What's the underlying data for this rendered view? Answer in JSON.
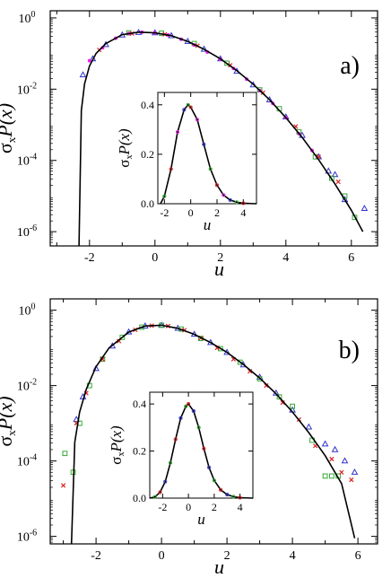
{
  "chart_data": [
    {
      "type": "scatter",
      "panel_label": "a)",
      "xlabel": "u",
      "ylabel_main": "σ",
      "ylabel_sub": "x",
      "ylabel_rest": "P(x)",
      "xlim": [
        -3.2,
        6.8
      ],
      "ylim_log10": [
        -6.4,
        0.2
      ],
      "y_scale": "log",
      "xticks": [
        -2,
        0,
        2,
        4,
        6
      ],
      "xtick_labels": [
        "-2",
        "0",
        "2",
        "4",
        "6"
      ],
      "yticks_log10": [
        0,
        -2,
        -4,
        -6
      ],
      "ytick_base": "10",
      "ytick_exponents": [
        "0",
        "-2",
        "-4",
        "-6"
      ],
      "curve": {
        "name": "",
        "color": "#000000",
        "x": [
          -2.32,
          -2.25,
          -2.15,
          -2.0,
          -1.8,
          -1.5,
          -1.0,
          -0.5,
          0.0,
          0.5,
          1.0,
          1.5,
          2.0,
          2.5,
          3.0,
          3.5,
          4.0,
          4.5,
          5.0,
          5.5,
          6.0,
          6.35
        ],
        "y": [
          -6.4,
          -2.6,
          -1.85,
          -1.35,
          -1.0,
          -0.72,
          -0.47,
          -0.4,
          -0.42,
          -0.5,
          -0.66,
          -0.88,
          -1.15,
          -1.48,
          -1.86,
          -2.3,
          -2.8,
          -3.36,
          -3.98,
          -4.66,
          -5.4,
          -6.0
        ]
      },
      "series": [
        {
          "name": "",
          "marker": "triangle",
          "color": "#3333cc",
          "x": [
            -2.2,
            -1.9,
            -1.5,
            -1.0,
            -0.5,
            0.0,
            0.5,
            1.0,
            1.5,
            2.0,
            2.5,
            3.0,
            3.5,
            4.0,
            4.5,
            5.0,
            5.3,
            5.5,
            5.8,
            6.4
          ],
          "y": [
            -1.6,
            -1.15,
            -0.75,
            -0.48,
            -0.41,
            -0.42,
            -0.5,
            -0.66,
            -0.88,
            -1.15,
            -1.5,
            -1.88,
            -2.3,
            -2.78,
            -3.3,
            -3.9,
            -4.3,
            -4.4,
            -5.1,
            -5.35
          ]
        },
        {
          "name": "",
          "marker": "square",
          "color": "#33aa33",
          "x": [
            -0.8,
            0.2,
            1.2,
            2.2,
            3.2,
            3.8,
            4.4,
            4.9,
            5.4,
            5.8,
            6.1
          ],
          "y": [
            -0.42,
            -0.43,
            -0.72,
            -1.27,
            -2.02,
            -2.55,
            -3.2,
            -3.9,
            -4.5,
            -5.0,
            -5.6
          ]
        },
        {
          "name": "",
          "marker": "cross",
          "color": "#dd2222",
          "x": [
            -1.7,
            -0.7,
            0.3,
            1.3,
            2.3,
            3.3,
            4.3,
            5.0,
            5.6
          ],
          "y": [
            -0.9,
            -0.44,
            -0.46,
            -0.78,
            -1.33,
            -2.1,
            -3.05,
            -3.9,
            -4.6
          ]
        },
        {
          "name": "",
          "marker": "dot",
          "color": "#ee22ee",
          "x": [
            -2.0,
            -1.6,
            -1.2,
            -0.8,
            -0.4,
            0.0,
            0.4,
            0.8,
            1.2,
            1.6,
            2.0,
            2.4,
            2.8,
            3.2,
            3.6,
            4.0,
            4.4,
            4.8
          ],
          "y": [
            -1.2,
            -0.84,
            -0.57,
            -0.44,
            -0.4,
            -0.42,
            -0.48,
            -0.6,
            -0.76,
            -0.96,
            -1.16,
            -1.42,
            -1.72,
            -2.04,
            -2.4,
            -2.8,
            -3.25,
            -3.72
          ]
        }
      ],
      "inset": {
        "xlabel": "u",
        "xlim": [
          -2.5,
          5.0
        ],
        "ylim": [
          0,
          0.45
        ],
        "xticks": [
          -2,
          0,
          2,
          4
        ],
        "xtick_labels": [
          "-2",
          "0",
          "2",
          "4"
        ],
        "yticks": [
          0.0,
          0.2,
          0.4
        ],
        "ytick_labels": [
          "0.0",
          "0.2",
          "0.4"
        ],
        "curve": {
          "x": [
            -2.3,
            -2.0,
            -1.5,
            -1.0,
            -0.5,
            -0.2,
            0.0,
            0.5,
            1.0,
            1.5,
            2.0,
            2.5,
            3.0,
            3.5,
            4.0,
            5.0
          ],
          "y": [
            0.0,
            0.03,
            0.14,
            0.29,
            0.38,
            0.4,
            0.39,
            0.34,
            0.24,
            0.14,
            0.075,
            0.035,
            0.015,
            0.006,
            0.002,
            0.0
          ]
        }
      }
    },
    {
      "type": "scatter",
      "panel_label": "b)",
      "xlabel": "u",
      "ylabel_main": "σ",
      "ylabel_sub": "x",
      "ylabel_rest": "P(x)",
      "xlim": [
        -3.4,
        6.6
      ],
      "ylim_log10": [
        -6.2,
        0.3
      ],
      "y_scale": "log",
      "xticks": [
        -2,
        0,
        2,
        4,
        6
      ],
      "xtick_labels": [
        "-2",
        "0",
        "2",
        "4",
        "6"
      ],
      "yticks_log10": [
        0,
        -2,
        -4,
        -6
      ],
      "ytick_base": "10",
      "ytick_exponents": [
        "0",
        "-2",
        "-4",
        "-6"
      ],
      "curve": {
        "name": "",
        "color": "#000000",
        "x": [
          -2.75,
          -2.65,
          -2.5,
          -2.3,
          -2.0,
          -1.6,
          -1.0,
          -0.5,
          0.0,
          0.5,
          1.0,
          1.5,
          2.0,
          2.5,
          3.0,
          3.5,
          4.0,
          4.5,
          5.0,
          5.5,
          5.9
        ],
        "y": [
          -6.2,
          -3.5,
          -2.7,
          -2.1,
          -1.5,
          -1.0,
          -0.58,
          -0.42,
          -0.4,
          -0.48,
          -0.64,
          -0.86,
          -1.12,
          -1.44,
          -1.8,
          -2.22,
          -2.7,
          -3.25,
          -3.86,
          -4.6,
          -6.05
        ]
      },
      "series": [
        {
          "name": "",
          "marker": "triangle",
          "color": "#3333cc",
          "x": [
            -2.6,
            -2.4,
            -2.0,
            -1.5,
            -1.0,
            -0.5,
            0.0,
            0.5,
            1.0,
            1.5,
            2.0,
            2.5,
            3.0,
            3.5,
            4.0,
            4.5,
            5.0,
            5.3,
            5.6,
            5.9
          ],
          "y": [
            -2.9,
            -2.3,
            -1.55,
            -0.95,
            -0.58,
            -0.42,
            -0.4,
            -0.48,
            -0.64,
            -0.86,
            -1.12,
            -1.45,
            -1.78,
            -2.2,
            -2.65,
            -3.1,
            -3.55,
            -3.7,
            -4.0,
            -4.3
          ]
        },
        {
          "name": "",
          "marker": "square",
          "color": "#33aa33",
          "x": [
            -2.95,
            -2.7,
            -2.5,
            -2.2,
            -1.8,
            -1.2,
            -0.6,
            0.0,
            0.6,
            1.2,
            1.8,
            2.4,
            3.0,
            3.6,
            4.0,
            4.6,
            5.0,
            5.2,
            5.4
          ],
          "y": [
            -3.8,
            -4.3,
            -3.0,
            -2.0,
            -1.3,
            -0.72,
            -0.45,
            -0.4,
            -0.5,
            -0.75,
            -1.02,
            -1.38,
            -1.82,
            -2.3,
            -2.55,
            -3.45,
            -4.4,
            -4.4,
            -4.4
          ]
        },
        {
          "name": "",
          "marker": "cross",
          "color": "#dd2222",
          "x": [
            -3.0,
            -2.6,
            -2.3,
            -1.8,
            -1.3,
            -0.8,
            -0.3,
            0.2,
            0.7,
            1.2,
            1.7,
            2.2,
            2.7,
            3.2,
            3.7,
            4.2,
            4.7,
            5.2,
            5.5,
            5.8
          ],
          "y": [
            -4.65,
            -3.0,
            -2.2,
            -1.3,
            -0.82,
            -0.52,
            -0.41,
            -0.42,
            -0.53,
            -0.74,
            -1.0,
            -1.3,
            -1.62,
            -2.0,
            -2.45,
            -2.9,
            -3.6,
            -3.95,
            -4.3,
            -4.5
          ]
        }
      ],
      "inset": {
        "xlabel": "u",
        "xlim": [
          -3.0,
          5.0
        ],
        "ylim": [
          0,
          0.45
        ],
        "xticks": [
          -2,
          0,
          2,
          4
        ],
        "xtick_labels": [
          "-2",
          "0",
          "2",
          "4"
        ],
        "yticks": [
          0.0,
          0.2,
          0.4
        ],
        "ytick_labels": [
          "0.0",
          "0.2",
          "0.4"
        ],
        "curve": {
          "x": [
            -3.0,
            -2.6,
            -2.2,
            -1.8,
            -1.4,
            -1.0,
            -0.6,
            -0.2,
            0.0,
            0.4,
            0.8,
            1.2,
            1.6,
            2.0,
            2.5,
            3.0,
            3.5,
            4.0,
            5.0
          ],
          "y": [
            0.0,
            0.005,
            0.025,
            0.07,
            0.15,
            0.25,
            0.34,
            0.39,
            0.4,
            0.37,
            0.3,
            0.21,
            0.13,
            0.075,
            0.035,
            0.015,
            0.006,
            0.002,
            0.0
          ]
        }
      }
    }
  ]
}
